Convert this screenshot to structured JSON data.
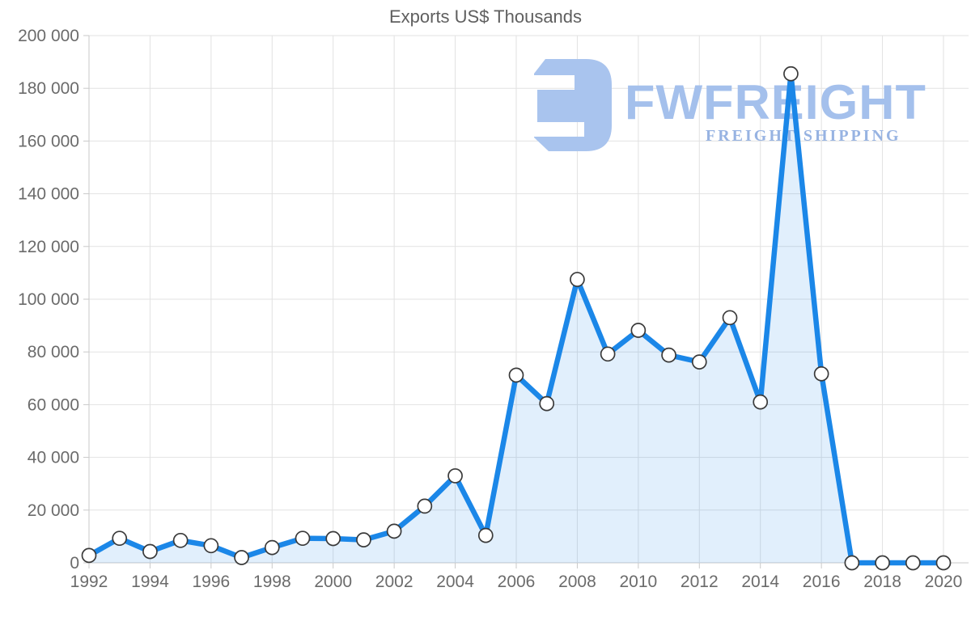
{
  "title": "Exports US$ Thousands",
  "watermark": {
    "name": "FWFREIGHT",
    "tagline": "FREIGHT SHIPPING",
    "icon_color": "#a9c4ee",
    "name_color": "#a4c0ec",
    "tagline_color": "#97b3e2"
  },
  "chart_data": {
    "type": "area",
    "title": "Exports US$ Thousands",
    "series_name": "Exports US$ Thousands",
    "x": [
      1992,
      1993,
      1994,
      1995,
      1996,
      1997,
      1998,
      1999,
      2000,
      2001,
      2002,
      2003,
      2004,
      2005,
      2006,
      2007,
      2008,
      2009,
      2010,
      2011,
      2012,
      2013,
      2014,
      2015,
      2016,
      2017,
      2018,
      2019,
      2020
    ],
    "values": [
      2800,
      9300,
      4300,
      8500,
      6500,
      2000,
      5800,
      9300,
      9200,
      8700,
      12000,
      21500,
      33000,
      10400,
      71200,
      60400,
      107500,
      79200,
      88200,
      78800,
      76200,
      93000,
      61000,
      185500,
      71700,
      0,
      0,
      0,
      0
    ],
    "xlabel": "",
    "ylabel": "",
    "ylim": [
      0,
      200000
    ],
    "x_ticks": [
      1992,
      1994,
      1996,
      1998,
      2000,
      2002,
      2004,
      2006,
      2008,
      2010,
      2012,
      2014,
      2016,
      2018,
      2020
    ],
    "y_ticks": [
      0,
      20000,
      40000,
      60000,
      80000,
      100000,
      120000,
      140000,
      160000,
      180000,
      200000
    ],
    "y_tick_labels": [
      "0",
      "20 000",
      "40 000",
      "60 000",
      "80 000",
      "100 000",
      "120 000",
      "140 000",
      "160 000",
      "180 000",
      "200 000"
    ],
    "grid": true,
    "legend": "none",
    "colors": {
      "line": "#1b87e8",
      "fill": "rgba(27,135,232,0.13)",
      "marker_fill": "#ffffff",
      "marker_stroke": "#3a3a3a",
      "gridline": "#e2e2e2",
      "axis": "#c9c9c9",
      "label": "#6b6b6b"
    }
  }
}
